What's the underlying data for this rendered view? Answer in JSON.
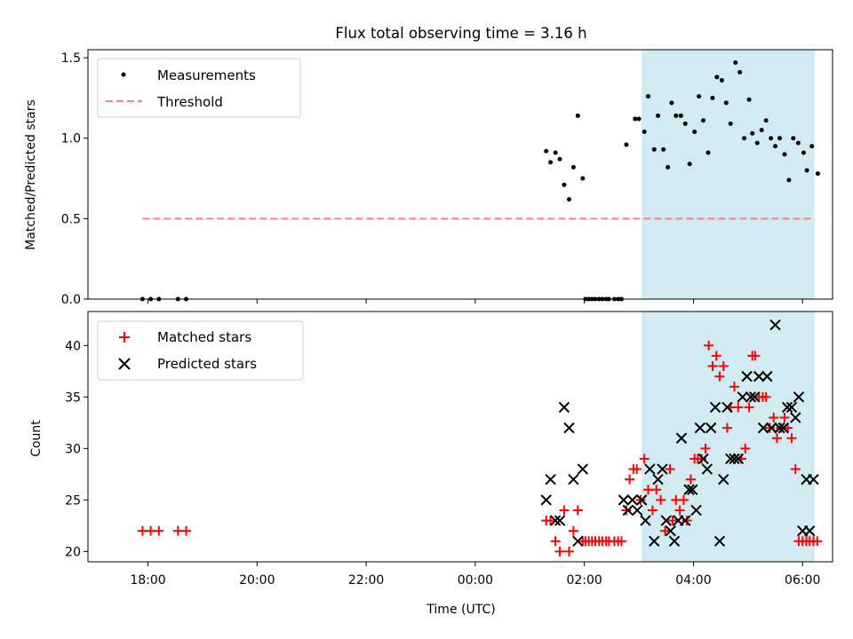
{
  "chart_data": [
    {
      "type": "scatter",
      "title": "Flux total observing time = 3.16 h",
      "xlabel": "",
      "ylabel": "Matched/Predicted stars",
      "ylim": [
        0,
        1.55
      ],
      "yticks": [
        0.0,
        0.5,
        1.0,
        1.5
      ],
      "ytick_labels": [
        "0.0",
        "0.5",
        "1.0",
        "1.5"
      ],
      "xlim": [
        -1.1,
        12.55
      ],
      "highlight_span": {
        "x0": 9.05,
        "x1": 12.22,
        "color": "#add8e6"
      },
      "legend": {
        "position": "top-left",
        "entries": [
          "Measurements",
          "Threshold"
        ]
      },
      "threshold": {
        "name": "Threshold",
        "y": 0.5,
        "x0": -0.1,
        "x1": 12.22,
        "color": "#ff7f7f"
      },
      "series": [
        {
          "name": "Measurements",
          "x": [
            -0.1,
            0.05,
            0.2,
            0.55,
            0.7,
            7.3,
            7.38,
            7.47,
            7.55,
            7.63,
            7.72,
            7.8,
            7.88,
            7.97,
            8.02,
            8.08,
            8.14,
            8.2,
            8.27,
            8.33,
            8.4,
            8.45,
            8.55,
            8.62,
            8.68,
            8.77,
            8.93,
            9.0,
            9.1,
            9.17,
            9.28,
            9.35,
            9.45,
            9.53,
            9.6,
            9.68,
            9.77,
            9.85,
            9.93,
            10.02,
            10.1,
            10.18,
            10.27,
            10.35,
            10.43,
            10.52,
            10.6,
            10.68,
            10.77,
            10.85,
            10.93,
            11.02,
            11.08,
            11.17,
            11.25,
            11.33,
            11.42,
            11.5,
            11.58,
            11.67,
            11.75,
            11.83,
            11.92,
            12.02,
            12.08,
            12.17,
            12.28
          ],
          "y": [
            0,
            0,
            0,
            0,
            0,
            0.92,
            0.85,
            0.91,
            0.87,
            0.71,
            0.62,
            0.82,
            1.14,
            0.75,
            0,
            0,
            0,
            0,
            0,
            0,
            0,
            0,
            0,
            0,
            0,
            0.96,
            1.12,
            1.12,
            1.04,
            1.26,
            0.93,
            1.14,
            0.93,
            0.82,
            1.22,
            1.14,
            1.14,
            1.09,
            0.84,
            1.04,
            1.26,
            1.11,
            0.91,
            1.25,
            1.38,
            1.36,
            1.22,
            1.09,
            1.47,
            1.41,
            1.0,
            1.24,
            1.03,
            0.97,
            1.05,
            1.11,
            1.0,
            0.95,
            1.0,
            0.9,
            0.74,
            1.0,
            0.97,
            0.91,
            0.8,
            0.95,
            0.78
          ]
        }
      ]
    },
    {
      "type": "scatter",
      "title": "",
      "xlabel": "Time (UTC)",
      "ylabel": "Count",
      "ylim": [
        19,
        43.3
      ],
      "yticks": [
        20,
        25,
        30,
        35,
        40
      ],
      "ytick_labels": [
        "20",
        "25",
        "30",
        "35",
        "40"
      ],
      "xlim": [
        -1.1,
        12.55
      ],
      "xticks": [
        0,
        2,
        4,
        6,
        8,
        10,
        12
      ],
      "xtick_labels": [
        "18:00",
        "20:00",
        "22:00",
        "00:00",
        "02:00",
        "04:00",
        "06:00"
      ],
      "highlight_span": {
        "x0": 9.05,
        "x1": 12.22,
        "color": "#add8e6"
      },
      "legend": {
        "position": "top-left",
        "entries": [
          "Matched stars",
          "Predicted stars"
        ]
      },
      "series": [
        {
          "name": "Matched stars",
          "marker": "+",
          "color": "#ff0000",
          "x": [
            -0.1,
            0.05,
            0.2,
            0.55,
            0.7,
            7.3,
            7.38,
            7.47,
            7.55,
            7.63,
            7.72,
            7.8,
            7.88,
            7.97,
            8.02,
            8.08,
            8.14,
            8.2,
            8.27,
            8.33,
            8.4,
            8.45,
            8.55,
            8.62,
            8.68,
            8.77,
            8.83,
            8.9,
            8.96,
            9.03,
            9.1,
            9.17,
            9.25,
            9.32,
            9.4,
            9.48,
            9.57,
            9.62,
            9.68,
            9.75,
            9.82,
            9.88,
            9.95,
            10.02,
            10.08,
            10.15,
            10.22,
            10.28,
            10.35,
            10.42,
            10.48,
            10.55,
            10.62,
            10.68,
            10.75,
            10.82,
            10.88,
            10.95,
            11.02,
            11.08,
            11.13,
            11.2,
            11.27,
            11.33,
            11.4,
            11.47,
            11.53,
            11.6,
            11.67,
            11.73,
            11.8,
            11.87,
            11.93,
            12.0,
            12.07,
            12.13,
            12.2,
            12.27
          ],
          "y": [
            22,
            22,
            22,
            22,
            22,
            23,
            23,
            21,
            20,
            24,
            20,
            22,
            24,
            21,
            21,
            21,
            21,
            21,
            21,
            21,
            21,
            21,
            21,
            21,
            21,
            24,
            27,
            28,
            28,
            25,
            29,
            26,
            24,
            26,
            25,
            22,
            28,
            23,
            25,
            24,
            25,
            23,
            27,
            29,
            29,
            29,
            30,
            40,
            38,
            39,
            37,
            38,
            32,
            34,
            36,
            34,
            29,
            30,
            34,
            39,
            39,
            35,
            35,
            35,
            32,
            33,
            31,
            32,
            33,
            32,
            31,
            28,
            21,
            21,
            21,
            21,
            21,
            21
          ]
        },
        {
          "name": "Predicted stars",
          "marker": "x",
          "color": "#000000",
          "x": [
            7.3,
            7.38,
            7.47,
            7.55,
            7.63,
            7.72,
            7.8,
            7.88,
            7.97,
            8.72,
            8.8,
            8.88,
            8.97,
            9.05,
            9.12,
            9.2,
            9.28,
            9.35,
            9.43,
            9.5,
            9.58,
            9.65,
            9.72,
            9.78,
            9.85,
            9.92,
            9.98,
            10.05,
            10.12,
            10.18,
            10.25,
            10.32,
            10.4,
            10.48,
            10.55,
            10.62,
            10.68,
            10.75,
            10.82,
            10.9,
            10.98,
            11.05,
            11.12,
            11.2,
            11.28,
            11.35,
            11.43,
            11.5,
            11.58,
            11.65,
            11.72,
            11.8,
            11.87,
            11.93,
            12.0,
            12.07,
            12.13,
            12.2
          ],
          "y": [
            25,
            27,
            23,
            23,
            34,
            32,
            27,
            21,
            28,
            25,
            24,
            25,
            24,
            25,
            23,
            28,
            21,
            27,
            28,
            23,
            22,
            21,
            23,
            31,
            23,
            26,
            26,
            24,
            32,
            29,
            28,
            32,
            34,
            21,
            27,
            34,
            29,
            29,
            29,
            35,
            37,
            35,
            35,
            37,
            32,
            37,
            32,
            42,
            32,
            32,
            34,
            34,
            33,
            35,
            22,
            27,
            22,
            27
          ]
        }
      ]
    }
  ]
}
